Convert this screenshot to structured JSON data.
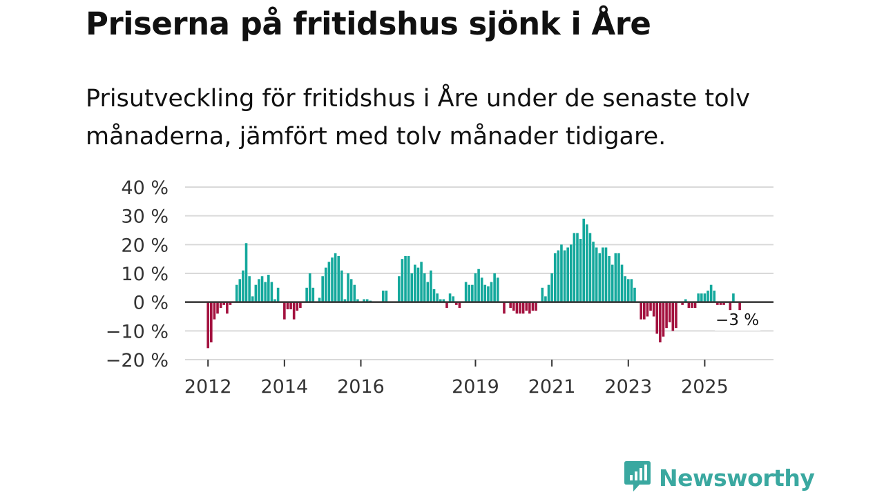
{
  "title": "Priserna på fritidshus sjönk i Åre",
  "subtitle": "Prisutveckling för fritidshus i Åre under de senaste tolv månaderna, jämfört med tolv månader tidigare.",
  "brand": {
    "name": "Newsworthy",
    "color": "#3aa8a0",
    "icon": "newsworthy-logo-icon"
  },
  "colors": {
    "positive": "#14a89c",
    "negative": "#a3123f",
    "grid": "#d9d9d9",
    "zero": "#333333"
  },
  "chart_data": {
    "type": "bar",
    "title": "Priserna på fritidshus sjönk i Åre",
    "xlabel": "",
    "ylabel": "",
    "ylim": [
      -20,
      40
    ],
    "yticks": [
      40,
      30,
      20,
      10,
      0,
      -10,
      -20
    ],
    "ytick_labels": [
      "40 %",
      "30 %",
      "20 %",
      "10 %",
      "0 %",
      "−10 %",
      "−20 %"
    ],
    "xlim": [
      2011.4,
      2026.8
    ],
    "xticks": [
      2012,
      2014,
      2016,
      2019,
      2021,
      2023,
      2025
    ],
    "xtick_labels": [
      "2012",
      "2014",
      "2016",
      "2019",
      "2021",
      "2023",
      "2025"
    ],
    "start": "2012-01",
    "frequency": "monthly",
    "end_label": "−3 %",
    "grid": true,
    "values": [
      -16,
      -14,
      -6,
      -4,
      -2,
      -1,
      -4,
      -1,
      0,
      6,
      8,
      11,
      20.5,
      9,
      2,
      6,
      8,
      9,
      7,
      9.5,
      7,
      1,
      5,
      0,
      -6,
      -2.5,
      -2.5,
      -6,
      -3,
      -2,
      0,
      5,
      10,
      5,
      0,
      1.5,
      9,
      12,
      14,
      15.5,
      17,
      16,
      11,
      1,
      10,
      8,
      6,
      1,
      0,
      1,
      1,
      0.5,
      0,
      0,
      0,
      4,
      4,
      0,
      0,
      0,
      9,
      15,
      16,
      16,
      10,
      13,
      12,
      14,
      10,
      7,
      11,
      4.5,
      3,
      1,
      1,
      -2,
      3,
      2,
      -1,
      -2,
      0,
      7,
      6,
      6,
      10,
      11.5,
      8.5,
      6,
      5.5,
      7,
      10,
      8.5,
      0,
      -4,
      0,
      -2,
      -3,
      -4,
      -4,
      -4,
      -3,
      -4,
      -3,
      -3,
      0,
      5,
      2,
      6,
      10,
      17,
      18,
      20,
      18,
      19,
      20,
      24,
      24,
      22,
      29,
      27,
      24,
      21,
      19,
      17,
      19,
      19,
      16,
      13,
      17,
      17,
      13,
      9,
      8,
      8,
      5,
      0,
      -6,
      -6,
      -5,
      -3,
      -5,
      -11,
      -14,
      -12,
      -9,
      -7,
      -10,
      -9,
      0,
      -1,
      1,
      -2,
      -2,
      -2,
      3,
      3,
      3,
      4,
      6,
      4,
      -1,
      -1,
      -1,
      0,
      -3,
      3,
      0,
      -3
    ]
  }
}
